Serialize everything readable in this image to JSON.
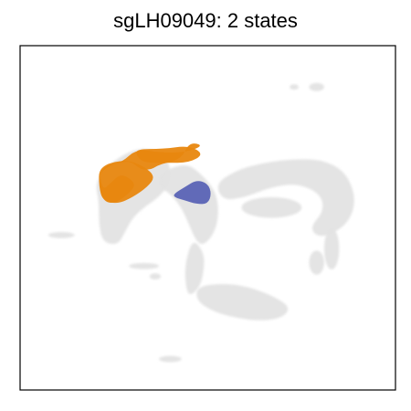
{
  "chart_data": {
    "type": "scatter",
    "title": "sgLH09049: 2 states",
    "xlabel": "",
    "ylabel": "",
    "axis_ticks": "none",
    "grid": false,
    "legend": "none",
    "colors": {
      "background_cells": "#e3e3e3",
      "state_1": "#e8870f",
      "state_2": "#5a63b5",
      "frame": "#000000"
    },
    "xlim": [
      0,
      100
    ],
    "ylim": [
      0,
      100
    ],
    "background": {
      "name": "all cells",
      "color": "#e3e3e3",
      "regions": [
        {
          "shape": "blob",
          "points": [
            [
              23,
              65
            ],
            [
              30,
              70
            ],
            [
              36,
              70
            ],
            [
              40,
              66
            ],
            [
              40,
              60
            ],
            [
              37,
              56
            ],
            [
              33,
              53
            ],
            [
              30,
              50
            ],
            [
              28,
              46
            ],
            [
              26,
              42
            ],
            [
              22,
              43
            ],
            [
              21,
              48
            ],
            [
              21,
              55
            ],
            [
              20,
              60
            ]
          ]
        },
        {
          "shape": "blob",
          "points": [
            [
              37,
              63
            ],
            [
              44,
              66
            ],
            [
              48,
              63
            ],
            [
              52,
              58
            ],
            [
              53,
              52
            ],
            [
              52,
              46
            ],
            [
              49,
              42
            ],
            [
              47,
              43
            ],
            [
              45,
              48
            ],
            [
              43,
              53
            ],
            [
              40,
              57
            ],
            [
              37,
              59
            ]
          ]
        },
        {
          "shape": "blob",
          "points": [
            [
              46,
              44
            ],
            [
              49,
              40
            ],
            [
              49,
              35
            ],
            [
              48,
              30
            ],
            [
              45,
              27
            ],
            [
              44,
              31
            ],
            [
              44,
              37
            ]
          ]
        },
        {
          "shape": "blob",
          "points": [
            [
              47,
              30
            ],
            [
              54,
              31
            ],
            [
              61,
              30
            ],
            [
              68,
              27
            ],
            [
              72,
              24
            ],
            [
              70,
              21
            ],
            [
              64,
              20
            ],
            [
              57,
              21
            ],
            [
              51,
              23
            ],
            [
              47,
              26
            ]
          ]
        },
        {
          "shape": "blob",
          "points": [
            [
              52,
              60
            ],
            [
              58,
              64
            ],
            [
              65,
              66
            ],
            [
              72,
              67
            ],
            [
              80,
              67
            ],
            [
              86,
              64
            ],
            [
              89,
              58
            ],
            [
              89,
              52
            ],
            [
              86,
              47
            ],
            [
              80,
              44
            ],
            [
              77,
              47
            ],
            [
              81,
              52
            ],
            [
              80,
              57
            ],
            [
              74,
              60
            ],
            [
              67,
              59
            ],
            [
              60,
              56
            ],
            [
              54,
              55
            ]
          ]
        },
        {
          "shape": "ellipse",
          "cx": 67,
          "cy": 53,
          "rx": 8,
          "ry": 3
        },
        {
          "shape": "ellipse",
          "cx": 83,
          "cy": 41,
          "rx": 2,
          "ry": 6
        },
        {
          "shape": "ellipse",
          "cx": 79,
          "cy": 37,
          "rx": 2,
          "ry": 3.5
        },
        {
          "shape": "ellipse",
          "cx": 11,
          "cy": 45,
          "rx": 3.5,
          "ry": 0.9
        },
        {
          "shape": "ellipse",
          "cx": 33,
          "cy": 36,
          "rx": 4,
          "ry": 0.9
        },
        {
          "shape": "ellipse",
          "cx": 36,
          "cy": 33,
          "rx": 1.5,
          "ry": 0.9
        },
        {
          "shape": "ellipse",
          "cx": 40,
          "cy": 9,
          "rx": 3,
          "ry": 0.9
        },
        {
          "shape": "ellipse",
          "cx": 79,
          "cy": 88,
          "rx": 2,
          "ry": 1.2
        },
        {
          "shape": "ellipse",
          "cx": 73,
          "cy": 88,
          "rx": 1.2,
          "ry": 0.8
        }
      ]
    },
    "series": [
      {
        "color": "#e8870f",
        "regions": [
          {
            "shape": "blob",
            "points": [
              [
                21,
                64
              ],
              [
                29,
                67
              ],
              [
                32,
                64
              ],
              [
                35,
                64
              ],
              [
                37,
                65.5
              ],
              [
                43,
                67
              ],
              [
                45,
                72
              ],
              [
                49,
                71
              ],
              [
                44,
                69
              ],
              [
                37,
                69
              ],
              [
                31,
                70
              ],
              [
                27,
                66
              ],
              [
                22,
                65
              ],
              [
                21,
                60
              ],
              [
                22,
                55
              ],
              [
                25,
                54
              ],
              [
                29,
                57
              ],
              [
                31,
                60
              ],
              [
                27,
                63
              ],
              [
                24,
                60
              ],
              [
                22,
                58
              ]
            ]
          },
          {
            "shape": "blob",
            "points": [
              [
                31,
                70
              ],
              [
                38,
                70
              ],
              [
                45,
                71
              ],
              [
                49,
                68.5
              ],
              [
                45,
                66
              ],
              [
                39,
                66
              ],
              [
                33,
                66
              ],
              [
                31,
                68
              ]
            ]
          },
          {
            "shape": "blob",
            "points": [
              [
                21,
                65
              ],
              [
                28,
                67
              ],
              [
                33,
                65
              ],
              [
                36,
                62
              ],
              [
                34,
                59
              ],
              [
                30,
                56
              ],
              [
                26,
                54
              ],
              [
                22,
                55
              ],
              [
                21,
                59
              ]
            ]
          }
        ]
      },
      {
        "color": "#5a63b5",
        "regions": [
          {
            "shape": "blob",
            "points": [
              [
                41,
                57
              ],
              [
                44,
                59
              ],
              [
                47,
                61
              ],
              [
                50,
                60
              ],
              [
                51,
                57
              ],
              [
                50,
                54
              ],
              [
                47,
                54
              ],
              [
                44,
                55
              ],
              [
                41,
                56
              ]
            ]
          }
        ]
      }
    ]
  }
}
